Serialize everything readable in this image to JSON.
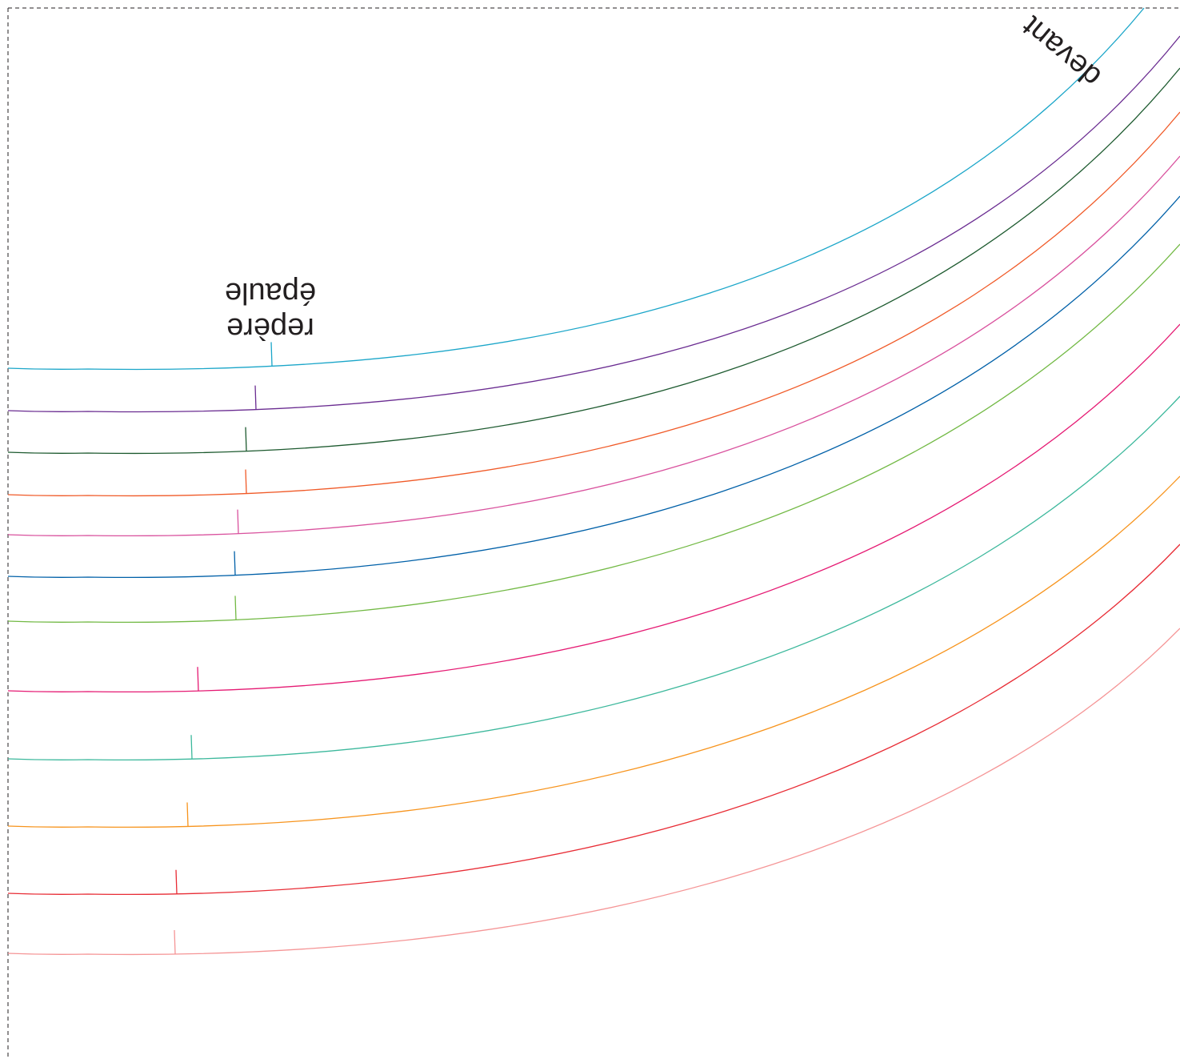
{
  "labels": {
    "shoulder_line1": "repère",
    "shoulder_line2": "épaule",
    "front": "devant"
  },
  "colors": {
    "text": "#231f20",
    "fold_line": "#231f20",
    "size_lines": [
      "#1ba6c9",
      "#6a2c91",
      "#1d5a2f",
      "#f05a28",
      "#d9529e",
      "#0060a8",
      "#72b944",
      "#e51a73",
      "#3cb89c",
      "#f7941d",
      "#e82c35",
      "#f59596"
    ]
  }
}
